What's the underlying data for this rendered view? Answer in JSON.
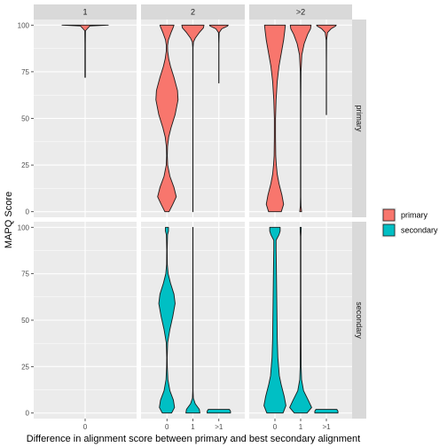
{
  "chart_data": {
    "type": "violin",
    "xlabel": "Difference in alignment score between primary and best secondary alignment",
    "ylabel": "MAPQ Score",
    "ylim": [
      -3,
      103
    ],
    "yticks": [
      0,
      25,
      50,
      75,
      100
    ],
    "facet_cols": [
      "1",
      "2",
      ">2"
    ],
    "facet_rows": [
      "primary",
      "secondary"
    ],
    "facet_col_categories": {
      "1": [
        "0"
      ],
      "2": [
        "0",
        "1",
        ">1"
      ],
      ">2": [
        "0",
        "1",
        ">1"
      ]
    },
    "legend": {
      "position": "right",
      "entries": [
        {
          "label": "primary",
          "color": "#F8766D"
        },
        {
          "label": "secondary",
          "color": "#00BFC4"
        }
      ]
    },
    "grid": true,
    "violins": [
      {
        "row": "primary",
        "col": "1",
        "x": "0",
        "ymin": 72,
        "ymax": 100,
        "profile": [
          [
            72,
            0.01
          ],
          [
            90,
            0.01
          ],
          [
            97,
            0.015
          ],
          [
            99.5,
            0.2
          ],
          [
            100,
            1
          ]
        ]
      },
      {
        "row": "primary",
        "col": "2",
        "x": "0",
        "ymin": 0,
        "ymax": 100,
        "profile": [
          [
            0,
            0.18
          ],
          [
            4,
            0.5
          ],
          [
            8,
            0.8
          ],
          [
            13,
            0.6
          ],
          [
            19,
            0.25
          ],
          [
            25,
            0.06
          ],
          [
            30,
            0.03
          ],
          [
            35,
            0.05
          ],
          [
            40,
            0.15
          ],
          [
            45,
            0.35
          ],
          [
            52,
            0.7
          ],
          [
            60,
            0.95
          ],
          [
            65,
            0.9
          ],
          [
            72,
            0.6
          ],
          [
            78,
            0.3
          ],
          [
            82,
            0.15
          ],
          [
            86,
            0.06
          ],
          [
            89,
            0.05
          ],
          [
            92,
            0.12
          ],
          [
            96,
            0.35
          ],
          [
            99,
            0.55
          ],
          [
            100,
            0.6
          ]
        ]
      },
      {
        "row": "primary",
        "col": "2",
        "x": "1",
        "ymin": 0,
        "ymax": 100,
        "profile": [
          [
            0,
            0.01
          ],
          [
            50,
            0.01
          ],
          [
            88,
            0.015
          ],
          [
            91,
            0.05
          ],
          [
            93,
            0.2
          ],
          [
            96,
            0.55
          ],
          [
            98.5,
            0.9
          ],
          [
            100,
            0.95
          ]
        ]
      },
      {
        "row": "primary",
        "col": "2",
        "x": ">1",
        "ymin": 69,
        "ymax": 100,
        "profile": [
          [
            69,
            0.01
          ],
          [
            90,
            0.01
          ],
          [
            96,
            0.03
          ],
          [
            98,
            0.25
          ],
          [
            99.5,
            0.75
          ],
          [
            100,
            0.8
          ]
        ]
      },
      {
        "row": "primary",
        "col": ">2",
        "x": "0",
        "ymin": 0,
        "ymax": 100,
        "profile": [
          [
            0,
            0.55
          ],
          [
            4,
            0.75
          ],
          [
            9,
            0.6
          ],
          [
            15,
            0.35
          ],
          [
            20,
            0.2
          ],
          [
            25,
            0.12
          ],
          [
            30,
            0.07
          ],
          [
            40,
            0.05
          ],
          [
            50,
            0.05
          ],
          [
            60,
            0.1
          ],
          [
            70,
            0.2
          ],
          [
            78,
            0.35
          ],
          [
            85,
            0.55
          ],
          [
            92,
            0.75
          ],
          [
            97,
            0.85
          ],
          [
            100,
            0.9
          ]
        ]
      },
      {
        "row": "primary",
        "col": ">2",
        "x": "1",
        "ymin": 0,
        "ymax": 100,
        "profile": [
          [
            0,
            0.08
          ],
          [
            3,
            0.03
          ],
          [
            8,
            0.015
          ],
          [
            20,
            0.015
          ],
          [
            60,
            0.015
          ],
          [
            75,
            0.03
          ],
          [
            84,
            0.1
          ],
          [
            90,
            0.3
          ],
          [
            95,
            0.6
          ],
          [
            98,
            0.85
          ],
          [
            100,
            0.9
          ]
        ]
      },
      {
        "row": "primary",
        "col": ">2",
        "x": ">1",
        "ymin": 52,
        "ymax": 100,
        "profile": [
          [
            52,
            0.01
          ],
          [
            80,
            0.01
          ],
          [
            92,
            0.02
          ],
          [
            96,
            0.1
          ],
          [
            98,
            0.4
          ],
          [
            99.5,
            0.8
          ],
          [
            100,
            0.85
          ]
        ]
      },
      {
        "row": "secondary",
        "col": "2",
        "x": "0",
        "ymin": 0,
        "ymax": 100,
        "profile": [
          [
            0,
            0.4
          ],
          [
            3,
            0.65
          ],
          [
            7,
            0.55
          ],
          [
            12,
            0.25
          ],
          [
            18,
            0.08
          ],
          [
            25,
            0.03
          ],
          [
            30,
            0.02
          ],
          [
            38,
            0.06
          ],
          [
            45,
            0.25
          ],
          [
            52,
            0.5
          ],
          [
            59,
            0.7
          ],
          [
            64,
            0.6
          ],
          [
            70,
            0.3
          ],
          [
            75,
            0.1
          ],
          [
            80,
            0.03
          ],
          [
            88,
            0.02
          ],
          [
            96,
            0.05
          ],
          [
            98,
            0.13
          ],
          [
            100,
            0.13
          ]
        ]
      },
      {
        "row": "secondary",
        "col": "2",
        "x": "1",
        "ymin": 0,
        "ymax": 100,
        "profile": [
          [
            0,
            0.6
          ],
          [
            2,
            0.55
          ],
          [
            5,
            0.2
          ],
          [
            8,
            0.04
          ],
          [
            12,
            0.015
          ],
          [
            100,
            0.01
          ]
        ]
      },
      {
        "row": "secondary",
        "col": "2",
        "x": ">1",
        "ymin": 0,
        "ymax": 2,
        "profile": [
          [
            0,
            1
          ],
          [
            1,
            1
          ],
          [
            2,
            0.9
          ]
        ]
      },
      {
        "row": "secondary",
        "col": ">2",
        "x": "0",
        "ymin": 0,
        "ymax": 100,
        "profile": [
          [
            0,
            0.7
          ],
          [
            4,
            0.95
          ],
          [
            9,
            0.8
          ],
          [
            15,
            0.55
          ],
          [
            20,
            0.38
          ],
          [
            30,
            0.25
          ],
          [
            40,
            0.2
          ],
          [
            50,
            0.18
          ],
          [
            60,
            0.16
          ],
          [
            70,
            0.14
          ],
          [
            80,
            0.12
          ],
          [
            88,
            0.1
          ],
          [
            93,
            0.1
          ],
          [
            96,
            0.35
          ],
          [
            98,
            0.45
          ],
          [
            100,
            0.45
          ]
        ]
      },
      {
        "row": "secondary",
        "col": ">2",
        "x": "1",
        "ymin": 0,
        "ymax": 100,
        "profile": [
          [
            0,
            0.55
          ],
          [
            3,
            0.95
          ],
          [
            7,
            0.65
          ],
          [
            12,
            0.25
          ],
          [
            18,
            0.08
          ],
          [
            25,
            0.04
          ],
          [
            40,
            0.03
          ],
          [
            60,
            0.02
          ],
          [
            80,
            0.02
          ],
          [
            95,
            0.02
          ],
          [
            98,
            0.04
          ],
          [
            100,
            0.05
          ]
        ]
      },
      {
        "row": "secondary",
        "col": ">2",
        "x": ">1",
        "ymin": 0,
        "ymax": 2,
        "profile": [
          [
            0,
            1
          ],
          [
            1,
            1
          ],
          [
            2,
            0.9
          ]
        ]
      }
    ]
  }
}
